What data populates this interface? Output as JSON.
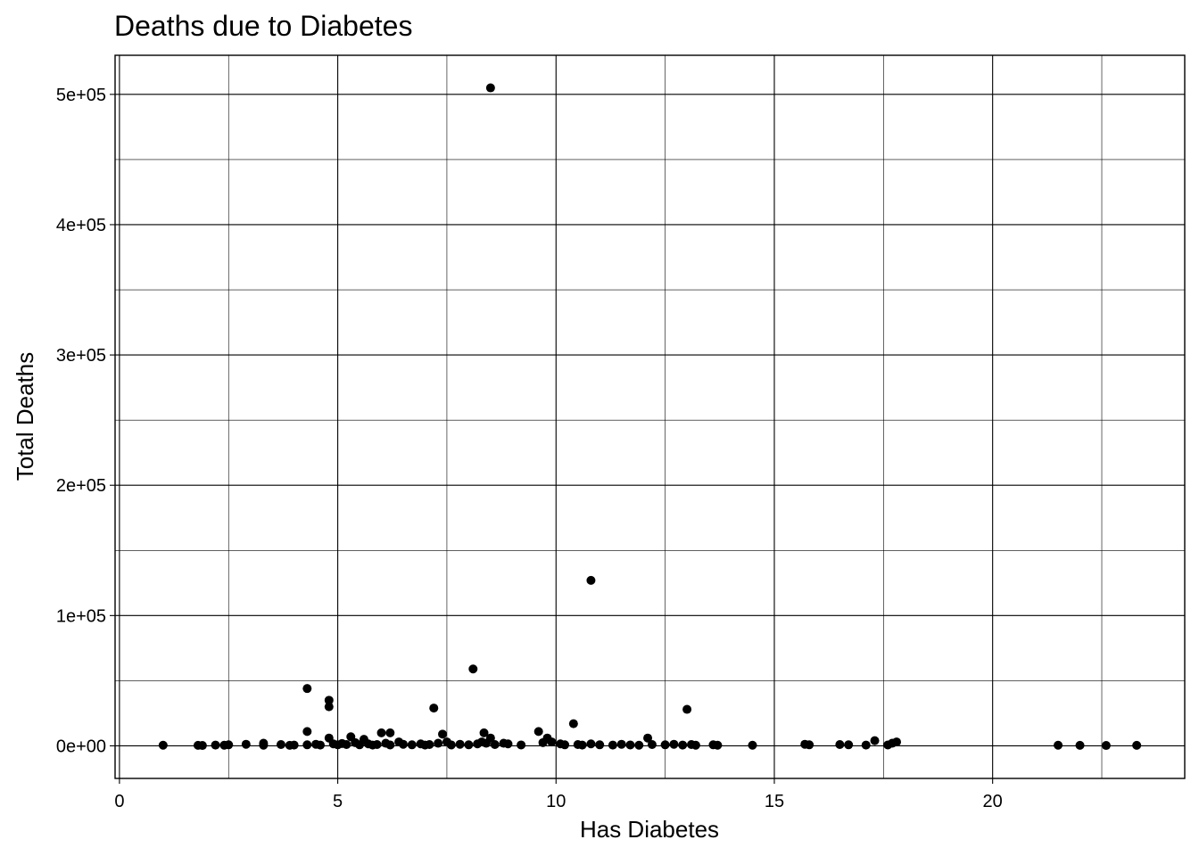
{
  "chart_data": {
    "type": "scatter",
    "title": "Deaths due to Diabetes",
    "xlabel": "Has Diabetes",
    "ylabel": "Total Deaths",
    "xlim": [
      -0.1,
      24.4
    ],
    "ylim": [
      -25000,
      530000
    ],
    "x_ticks": [
      0,
      5,
      10,
      15,
      20
    ],
    "x_tick_labels": [
      "0",
      "5",
      "10",
      "15",
      "20"
    ],
    "y_ticks": [
      0,
      100000,
      200000,
      300000,
      400000,
      500000
    ],
    "y_tick_labels": [
      "0e+00",
      "1e+05",
      "2e+05",
      "3e+05",
      "4e+05",
      "5e+05"
    ],
    "x_minor": [
      2.5,
      7.5,
      12.5,
      17.5,
      22.5
    ],
    "y_minor": [
      50000,
      150000,
      250000,
      350000,
      450000
    ],
    "grid": true,
    "points": [
      {
        "x": 1.0,
        "y": 500
      },
      {
        "x": 1.8,
        "y": 400
      },
      {
        "x": 1.9,
        "y": 300
      },
      {
        "x": 2.2,
        "y": 600
      },
      {
        "x": 2.4,
        "y": 500
      },
      {
        "x": 2.5,
        "y": 800
      },
      {
        "x": 2.9,
        "y": 1200
      },
      {
        "x": 3.3,
        "y": 2000
      },
      {
        "x": 3.3,
        "y": 500
      },
      {
        "x": 3.7,
        "y": 1000
      },
      {
        "x": 3.9,
        "y": 400
      },
      {
        "x": 4.0,
        "y": 600
      },
      {
        "x": 4.3,
        "y": 44000
      },
      {
        "x": 4.3,
        "y": 11000
      },
      {
        "x": 4.3,
        "y": 800
      },
      {
        "x": 4.5,
        "y": 1200
      },
      {
        "x": 4.6,
        "y": 600
      },
      {
        "x": 4.8,
        "y": 35000
      },
      {
        "x": 4.8,
        "y": 30000
      },
      {
        "x": 4.8,
        "y": 6000
      },
      {
        "x": 4.9,
        "y": 1500
      },
      {
        "x": 5.0,
        "y": 800
      },
      {
        "x": 5.1,
        "y": 1800
      },
      {
        "x": 5.2,
        "y": 1000
      },
      {
        "x": 5.3,
        "y": 7000
      },
      {
        "x": 5.4,
        "y": 2500
      },
      {
        "x": 5.5,
        "y": 800
      },
      {
        "x": 5.6,
        "y": 5000
      },
      {
        "x": 5.7,
        "y": 1500
      },
      {
        "x": 5.8,
        "y": 600
      },
      {
        "x": 5.9,
        "y": 1000
      },
      {
        "x": 6.0,
        "y": 10000
      },
      {
        "x": 6.1,
        "y": 2000
      },
      {
        "x": 6.2,
        "y": 700
      },
      {
        "x": 6.2,
        "y": 10000
      },
      {
        "x": 6.4,
        "y": 3000
      },
      {
        "x": 6.5,
        "y": 1200
      },
      {
        "x": 6.7,
        "y": 800
      },
      {
        "x": 6.9,
        "y": 1500
      },
      {
        "x": 7.0,
        "y": 600
      },
      {
        "x": 7.1,
        "y": 1000
      },
      {
        "x": 7.2,
        "y": 29000
      },
      {
        "x": 7.3,
        "y": 2000
      },
      {
        "x": 7.4,
        "y": 9000
      },
      {
        "x": 7.5,
        "y": 3000
      },
      {
        "x": 7.6,
        "y": 700
      },
      {
        "x": 7.8,
        "y": 1200
      },
      {
        "x": 8.0,
        "y": 800
      },
      {
        "x": 8.1,
        "y": 59000
      },
      {
        "x": 8.2,
        "y": 1500
      },
      {
        "x": 8.3,
        "y": 3000
      },
      {
        "x": 8.35,
        "y": 10000
      },
      {
        "x": 8.4,
        "y": 2000
      },
      {
        "x": 8.5,
        "y": 505000
      },
      {
        "x": 8.5,
        "y": 6000
      },
      {
        "x": 8.6,
        "y": 1000
      },
      {
        "x": 8.8,
        "y": 2000
      },
      {
        "x": 8.9,
        "y": 1500
      },
      {
        "x": 9.2,
        "y": 700
      },
      {
        "x": 9.6,
        "y": 11000
      },
      {
        "x": 9.7,
        "y": 2500
      },
      {
        "x": 9.8,
        "y": 6000
      },
      {
        "x": 9.9,
        "y": 3000
      },
      {
        "x": 10.1,
        "y": 1500
      },
      {
        "x": 10.2,
        "y": 800
      },
      {
        "x": 10.4,
        "y": 17000
      },
      {
        "x": 10.5,
        "y": 1000
      },
      {
        "x": 10.6,
        "y": 600
      },
      {
        "x": 10.8,
        "y": 127000
      },
      {
        "x": 10.8,
        "y": 1500
      },
      {
        "x": 11.0,
        "y": 800
      },
      {
        "x": 11.3,
        "y": 600
      },
      {
        "x": 11.5,
        "y": 1200
      },
      {
        "x": 11.7,
        "y": 700
      },
      {
        "x": 11.9,
        "y": 500
      },
      {
        "x": 12.1,
        "y": 6000
      },
      {
        "x": 12.2,
        "y": 1000
      },
      {
        "x": 12.5,
        "y": 800
      },
      {
        "x": 12.7,
        "y": 1200
      },
      {
        "x": 12.9,
        "y": 600
      },
      {
        "x": 13.0,
        "y": 28000
      },
      {
        "x": 13.1,
        "y": 1000
      },
      {
        "x": 13.2,
        "y": 500
      },
      {
        "x": 13.6,
        "y": 800
      },
      {
        "x": 13.7,
        "y": 500
      },
      {
        "x": 14.5,
        "y": 500
      },
      {
        "x": 15.7,
        "y": 1200
      },
      {
        "x": 15.8,
        "y": 800
      },
      {
        "x": 16.5,
        "y": 1000
      },
      {
        "x": 16.7,
        "y": 800
      },
      {
        "x": 17.1,
        "y": 600
      },
      {
        "x": 17.3,
        "y": 4000
      },
      {
        "x": 17.6,
        "y": 700
      },
      {
        "x": 17.7,
        "y": 2000
      },
      {
        "x": 17.8,
        "y": 3000
      },
      {
        "x": 21.5,
        "y": 500
      },
      {
        "x": 22.0,
        "y": 400
      },
      {
        "x": 22.6,
        "y": 300
      },
      {
        "x": 23.3,
        "y": 400
      }
    ]
  }
}
